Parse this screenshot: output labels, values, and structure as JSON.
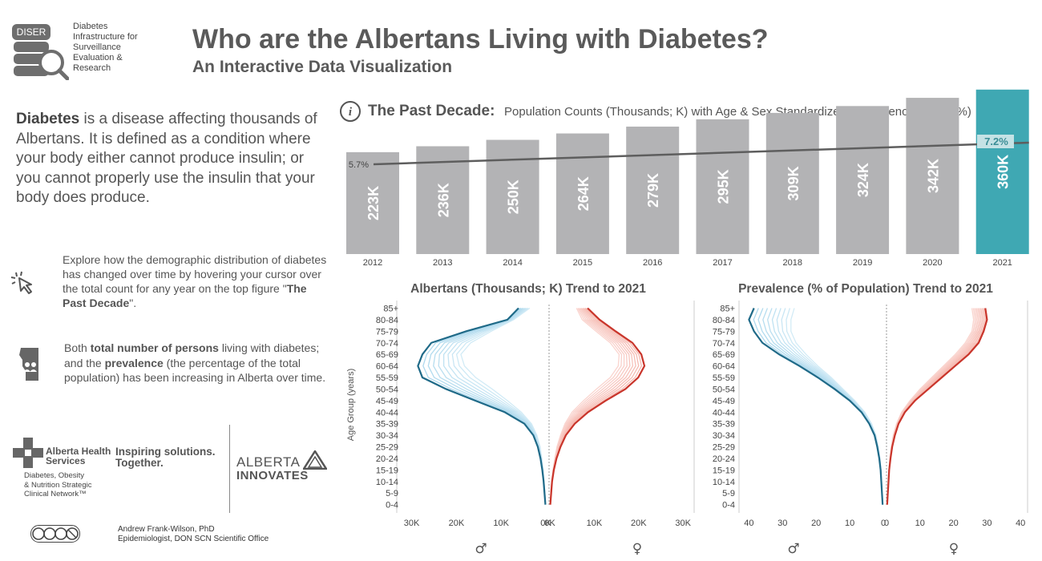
{
  "header": {
    "logo_text": "DISER",
    "org_name": "Diabetes\nInfrastructure for\nSurveillance\nEvaluation &\nResearch",
    "title": "Who are the Albertans Living with Diabetes?",
    "subtitle": "An Interactive Data Visualization"
  },
  "left_panel": {
    "intro_bold": "Diabetes",
    "intro_text": " is a disease affecting thousands of Albertans. It is defined as a condition where your body either cannot produce insulin; or you cannot properly use the insulin that your body does produce.",
    "explore_pre": "Explore how the demographic distribution of diabetes has changed over time by hovering your cursor over the total count for any year on the top figure \"",
    "explore_bold": "The Past Decade",
    "explore_post": "\".",
    "both_pre": "Both ",
    "both_bold1": "total number of persons",
    "both_mid": " living with diabetes; and the ",
    "both_bold2": "prevalence",
    "both_post": " (the percentage of the total population) has been increasing in Alberta over time."
  },
  "logos": {
    "ahs_name": "Alberta Health\nServices",
    "inspiring": "Inspiring solutions.\nTogether.",
    "network": "Diabetes, Obesity\n& Nutrition Strategic\nClinical Network™",
    "ai_line1": "ALBERTA",
    "ai_line2": "INNOVATES",
    "author_name": "Andrew Frank-Wilson, PhD",
    "author_role": "Epidemiologist, DON SCN Scientific Office"
  },
  "colors": {
    "bar_gray": "#b3b3b5",
    "bar_highlight": "#3fa8b3",
    "male_dark": "#1f6a88",
    "male_light": "#a8d6ec",
    "female_dark": "#c9352b",
    "female_light": "#f4b3aa",
    "text": "#555555"
  },
  "chart_data": [
    {
      "type": "bar",
      "title": "The Past Decade:",
      "subtitle": "Population Counts (Thousands; K) with Age & Sex Standardized* Prevalence Rates (%)",
      "categories": [
        "2012",
        "2013",
        "2014",
        "2015",
        "2016",
        "2017",
        "2018",
        "2019",
        "2020",
        "2021"
      ],
      "values": [
        223,
        236,
        250,
        264,
        279,
        295,
        309,
        324,
        342,
        360
      ],
      "value_labels": [
        "223K",
        "236K",
        "250K",
        "264K",
        "279K",
        "295K",
        "309K",
        "324K",
        "342K",
        "360K"
      ],
      "highlighted": "2021",
      "line_overlay": {
        "start_label": "5.7%",
        "end_label": "7.2%",
        "start": 5.7,
        "end": 7.2
      }
    },
    {
      "type": "line",
      "title": "Albertans (Thousands; K) Trend to 2021",
      "ylabel": "Age Group (years)",
      "age_groups": [
        "0-4",
        "5-9",
        "10-14",
        "15-19",
        "20-24",
        "25-29",
        "30-34",
        "35-39",
        "40-44",
        "45-49",
        "50-54",
        "55-59",
        "60-64",
        "65-69",
        "70-74",
        "75-79",
        "80-84",
        "85+"
      ],
      "male_ticks": [
        "30K",
        "20K",
        "10K",
        "0K"
      ],
      "female_ticks": [
        "0K",
        "10K",
        "20K",
        "30K"
      ],
      "male_symbol": "♂",
      "female_symbol": "♀",
      "series": [
        {
          "sex": "male",
          "year": "2012",
          "values": [
            0.1,
            0.2,
            0.4,
            0.6,
            0.9,
            1.3,
            2.0,
            3.2,
            5.5,
            8.6,
            12.0,
            15.7,
            18.2,
            19.0,
            16.8,
            12.2,
            7.2,
            3.6
          ]
        },
        {
          "sex": "male",
          "year": "2021",
          "values": [
            0.1,
            0.3,
            0.5,
            0.8,
            1.2,
            1.8,
            2.8,
            4.8,
            9.2,
            15.8,
            22.3,
            27.6,
            28.6,
            27.6,
            25.6,
            17.8,
            8.6,
            6.1
          ]
        },
        {
          "sex": "female",
          "year": "2012",
          "values": [
            0.1,
            0.2,
            0.4,
            0.7,
            1.1,
            1.6,
            2.4,
            3.4,
            5.0,
            7.6,
            10.5,
            13.6,
            15.4,
            15.6,
            13.6,
            10.4,
            7.3,
            6.0
          ]
        },
        {
          "sex": "female",
          "year": "2021",
          "values": [
            0.1,
            0.3,
            0.5,
            0.9,
            1.5,
            2.4,
            3.6,
            5.6,
            8.6,
            12.6,
            17.0,
            19.9,
            21.3,
            20.6,
            18.6,
            14.8,
            11.2,
            8.5
          ]
        }
      ]
    },
    {
      "type": "line",
      "title": "Prevalence (% of Population) Trend to 2021",
      "age_groups": [
        "0-4",
        "5-9",
        "10-14",
        "15-19",
        "20-24",
        "25-29",
        "30-34",
        "35-39",
        "40-44",
        "45-49",
        "50-54",
        "55-59",
        "60-64",
        "65-69",
        "70-74",
        "75-79",
        "80-84",
        "85+"
      ],
      "male_ticks": [
        "40",
        "30",
        "20",
        "10",
        "0"
      ],
      "female_ticks": [
        "0",
        "10",
        "20",
        "30",
        "40"
      ],
      "male_symbol": "♂",
      "female_symbol": "♀",
      "series": [
        {
          "sex": "male",
          "year": "2012",
          "values": [
            0.2,
            0.4,
            0.5,
            0.7,
            1.0,
            1.5,
            2.2,
            3.5,
            5.5,
            8.5,
            12.0,
            15.5,
            19.5,
            23.0,
            26.0,
            27.5,
            27.5,
            26.5
          ]
        },
        {
          "sex": "male",
          "year": "2021",
          "values": [
            0.2,
            0.4,
            0.6,
            0.8,
            1.2,
            1.8,
            2.6,
            4.2,
            6.5,
            10.0,
            14.5,
            19.5,
            25.0,
            31.0,
            36.0,
            38.5,
            40.0,
            38.5
          ]
        },
        {
          "sex": "female",
          "year": "2012",
          "values": [
            0.2,
            0.4,
            0.5,
            0.7,
            1.0,
            1.4,
            2.0,
            3.0,
            4.5,
            7.0,
            10.0,
            13.5,
            17.0,
            20.5,
            23.5,
            25.5,
            26.0,
            25.5
          ]
        },
        {
          "sex": "female",
          "year": "2021",
          "values": [
            0.2,
            0.4,
            0.6,
            0.8,
            1.2,
            1.7,
            2.5,
            3.6,
            5.5,
            8.5,
            12.5,
            16.5,
            20.5,
            24.5,
            27.5,
            29.0,
            30.0,
            29.5
          ]
        }
      ]
    }
  ]
}
